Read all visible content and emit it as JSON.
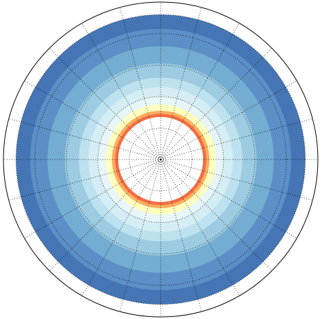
{
  "chart_data": {
    "type": "polar-contour",
    "rlim": [
      0,
      1
    ],
    "levels": [
      0.92,
      0.83,
      0.72,
      0.61,
      0.52,
      0.46,
      0.4,
      0.35,
      0.31,
      0.29,
      0.27
    ],
    "colors": [
      "#4575b4",
      "#5b8fc6",
      "#74add1",
      "#9dcbe1",
      "#bde1ee",
      "#d5edf4",
      "#e8f6f8",
      "#ffffbf",
      "#fdae61",
      "#f46d43",
      "#ffffff"
    ],
    "rticks": [
      0.2,
      0.4,
      0.6,
      0.8,
      0.92
    ],
    "thetaticks": [
      0,
      15,
      30,
      45,
      60,
      75,
      90,
      105,
      120,
      135,
      150,
      165,
      180,
      195,
      210,
      225,
      240,
      255,
      270,
      285,
      300,
      315,
      330,
      345
    ],
    "grid": true
  }
}
